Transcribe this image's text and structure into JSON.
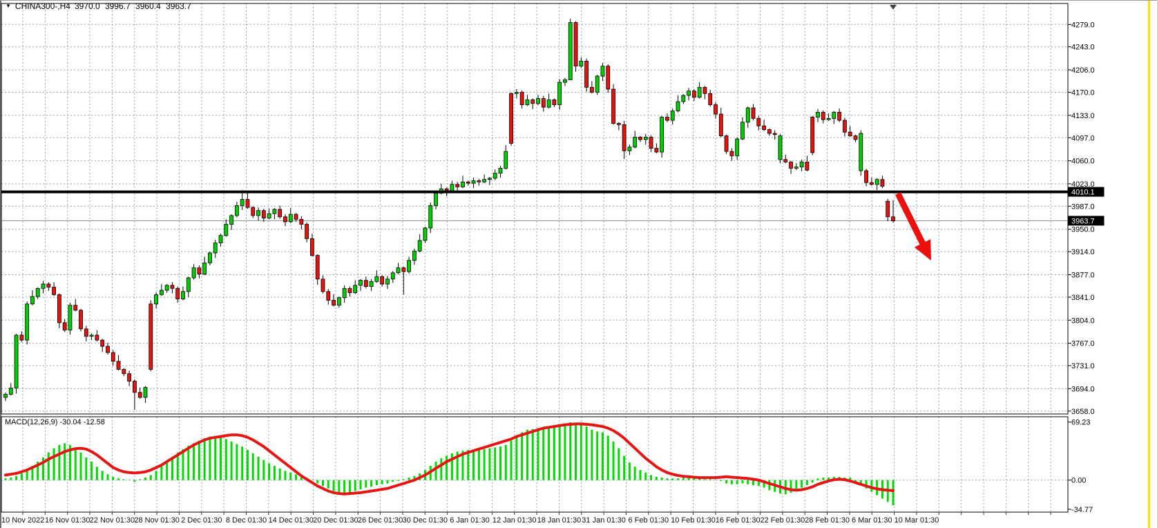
{
  "header": {
    "dropdown_icon": "triangle-down",
    "symbol_period": "CHINA300-,H4",
    "open": "3970.0",
    "high": "3996.7",
    "low": "3960.4",
    "close": "3963.7"
  },
  "price_axis": {
    "ticks": [
      "4279.0",
      "4243.0",
      "4206.0",
      "4170.0",
      "4133.0",
      "4097.0",
      "4060.0",
      "4023.0",
      "3987.0",
      "3950.0",
      "3914.0",
      "3877.0",
      "3841.0",
      "3804.0",
      "3767.0",
      "3731.0",
      "3694.0",
      "3658.0"
    ],
    "hline_badge": "4010.1",
    "price_badge": "3963.7"
  },
  "time_axis": {
    "labels": [
      "10 Nov 2022",
      "16 Nov 01:30",
      "22 Nov 01:30",
      "28 Nov 01:30",
      "2 Dec 01:30",
      "8 Dec 01:30",
      "14 Dec 01:30",
      "20 Dec 01:30",
      "26 Dec 01:30",
      "30 Dec 01:30",
      "6 Jan 01:30",
      "12 Jan 01:30",
      "18 Jan 01:30",
      "31 Jan 01:30",
      "6 Feb 01:30",
      "10 Feb 01:30",
      "16 Feb 01:30",
      "22 Feb 01:30",
      "28 Feb 01:30",
      "6 Mar 01:30",
      "10 Mar 01:30"
    ]
  },
  "macd_panel": {
    "label": "MACD(12,26,9) -30.04 -12.58",
    "axis_top": "69.23",
    "axis_zero": "0.00",
    "axis_bottom": "-34.77"
  },
  "colors": {
    "grid": "#93a2b2",
    "candle_up": "#00cf00",
    "candle_down": "#e8130c",
    "candle_outline": "#000000",
    "hist": "#00dc00",
    "signal": "#e81414",
    "hline": "#000000",
    "price_line": "#8c8c8c",
    "badge_bg": "#000000",
    "badge_text": "#ffffff",
    "arrow": "#ed0e0e",
    "yellow_edge": "#ffdf00"
  },
  "chart_data": {
    "type": "candlestick_with_macd",
    "symbol": "CHINA300-",
    "timeframe": "H4",
    "current_ohlc": {
      "open": 3970.0,
      "high": 3996.7,
      "low": 3960.4,
      "close": 3963.7
    },
    "hline_level": 4010.1,
    "current_price": 3963.7,
    "price_ticks": [
      4279,
      4243,
      4206,
      4170,
      4133,
      4097,
      4060,
      4023,
      3987,
      3950,
      3914,
      3877,
      3841,
      3804,
      3767,
      3731,
      3694,
      3658
    ],
    "macd_axis": [
      69.23,
      0.0,
      -34.77
    ],
    "macd_values": {
      "macd": -30.04,
      "signal": -12.58
    },
    "closes": [
      3685,
      3695,
      3780,
      3772,
      3830,
      3842,
      3855,
      3862,
      3857,
      3845,
      3800,
      3788,
      3828,
      3820,
      3790,
      3778,
      3780,
      3772,
      3762,
      3752,
      3738,
      3725,
      3718,
      3706,
      3688,
      3680,
      3696,
      3830,
      3845,
      3852,
      3860,
      3855,
      3838,
      3850,
      3872,
      3888,
      3878,
      3896,
      3912,
      3928,
      3940,
      3958,
      3972,
      3988,
      3998,
      3985,
      3972,
      3980,
      3968,
      3975,
      3982,
      3970,
      3962,
      3974,
      3966,
      3958,
      3935,
      3908,
      3870,
      3850,
      3836,
      3828,
      3840,
      3855,
      3848,
      3860,
      3868,
      3858,
      3866,
      3874,
      3862,
      3870,
      3880,
      3888,
      3882,
      3900,
      3915,
      3932,
      3952,
      3988,
      4008,
      4015,
      4012,
      4022,
      4018,
      4026,
      4024,
      4028,
      4026,
      4030,
      4032,
      4040,
      4048,
      4075,
      4168,
      4170,
      4150,
      4158,
      4152,
      4160,
      4146,
      4158,
      4150,
      4186,
      4190,
      4282,
      4212,
      4220,
      4178,
      4170,
      4196,
      4212,
      4175,
      4120,
      4118,
      4076,
      4082,
      4098,
      4094,
      4098,
      4080,
      4074,
      4130,
      4125,
      4140,
      4155,
      4165,
      4172,
      4162,
      4178,
      4168,
      4150,
      4135,
      4100,
      4075,
      4068,
      4095,
      4122,
      4145,
      4128,
      4116,
      4110,
      4104,
      4102,
      4062,
      4058,
      4048,
      4050,
      4058,
      4045,
      4130,
      4138,
      4126,
      4128,
      4138,
      4125,
      4106,
      4100,
      4094,
      4044,
      4025,
      4022,
      4030,
      4019,
      3970,
      3963.7
    ],
    "candle_overrides": {
      "24": {
        "low": 3660
      },
      "27": {
        "open": 3725
      },
      "44": {
        "high": 4013
      },
      "74": {
        "low": 3845
      },
      "94": {
        "open": 4088
      },
      "105": {
        "high": 4288,
        "low": 4227
      },
      "115": {
        "low": 4063
      },
      "144": {
        "open": 4100
      },
      "150": {
        "open": 4073
      },
      "159": {
        "open": 4104
      },
      "164": {
        "open": 3995
      },
      "165": {
        "open": 3970,
        "high": 3996.7,
        "low": 3960.4
      }
    },
    "color_overrides": {
      "27": "down",
      "94": "down",
      "105": "up",
      "144": "up",
      "150": "down",
      "159": "up",
      "164": "down",
      "165": "down"
    },
    "macd_histogram": [
      2,
      3,
      5,
      8,
      12,
      17,
      22,
      27,
      33,
      38,
      42,
      44,
      42,
      38,
      33,
      27,
      22,
      16,
      11,
      7,
      4,
      2,
      1,
      0.5,
      -2,
      1,
      3,
      6,
      11,
      17,
      23,
      28,
      33,
      37,
      41,
      44,
      47,
      50,
      52,
      52,
      51,
      49,
      46,
      43,
      40,
      36,
      32,
      28,
      24,
      20,
      17,
      14,
      11,
      9,
      7,
      5,
      3,
      0,
      -4,
      -7,
      -10,
      -13,
      -15,
      -16,
      -15,
      -13,
      -11,
      -9,
      -8,
      -6,
      -5,
      -4,
      -2,
      -1,
      1,
      3,
      5,
      8,
      12,
      17,
      22,
      26,
      29,
      32,
      34,
      35,
      36,
      36,
      37,
      37,
      38,
      39,
      40,
      42,
      47,
      53,
      57,
      60,
      61,
      62,
      62,
      63,
      63,
      64,
      66,
      69,
      68,
      67,
      64,
      60,
      58,
      57,
      53,
      46,
      38,
      29,
      21,
      16,
      12,
      9,
      6,
      4,
      3,
      2,
      2,
      2,
      3,
      3,
      2,
      2,
      1,
      1,
      0,
      -1,
      -4,
      -5,
      -5,
      -4,
      -5,
      -6,
      -7,
      -9,
      -12,
      -14,
      -16,
      -17,
      -15,
      -12,
      -9,
      -6,
      -3,
      2,
      3,
      3,
      4,
      4,
      3,
      3,
      -2,
      -5,
      -10,
      -14,
      -18,
      -22,
      -26,
      -30
    ],
    "macd_signal": [
      6,
      7,
      8,
      10,
      12,
      15,
      18,
      21,
      25,
      28,
      31,
      34,
      36,
      37.5,
      38,
      37,
      34,
      30,
      25,
      20,
      15,
      12,
      10,
      9,
      8.5,
      9,
      10,
      12,
      15,
      18,
      22,
      26,
      30,
      34,
      38,
      42,
      45,
      48,
      50,
      51,
      52,
      53,
      54,
      54,
      53,
      51,
      48,
      44,
      40,
      35,
      30,
      25,
      20,
      15,
      10,
      5,
      1,
      -3,
      -7,
      -10,
      -13,
      -15,
      -16,
      -16.5,
      -16,
      -15.5,
      -15,
      -14,
      -13,
      -12,
      -11,
      -10,
      -8,
      -6,
      -4,
      -2,
      0,
      3,
      6,
      10,
      14,
      18,
      22,
      25,
      28,
      31,
      33,
      35,
      37,
      39,
      41,
      43,
      45,
      47,
      49,
      52,
      54,
      56,
      58,
      60,
      62,
      63,
      64,
      65,
      66,
      66.5,
      67,
      67,
      66.5,
      66,
      65,
      64,
      62,
      59,
      55,
      50,
      44,
      38,
      32,
      26,
      21,
      16,
      12,
      9,
      7,
      5.5,
      4.5,
      4,
      3.5,
      3,
      3,
      3,
      3,
      3.5,
      4,
      3.5,
      3,
      2.5,
      2,
      1,
      0,
      -2,
      -4,
      -6,
      -8,
      -10,
      -11.5,
      -12,
      -11.5,
      -10,
      -8,
      -5,
      -3,
      -1,
      0.5,
      1,
      0.5,
      -1,
      -3,
      -5,
      -7,
      -9,
      -10.5,
      -11.5,
      -12,
      -12.58
    ],
    "annotations": {
      "arrow": {
        "from": [
          1300,
          279
        ],
        "to": [
          1348,
          376
        ]
      }
    }
  }
}
